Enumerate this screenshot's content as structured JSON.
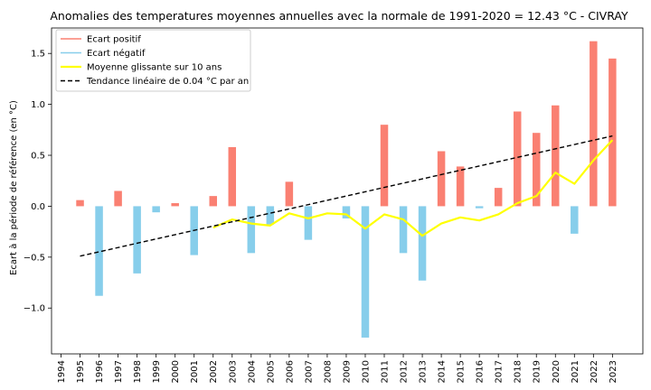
{
  "chart_data": {
    "type": "bar",
    "title": "Anomalies des temperatures moyennes annuelles avec la normale de 1991-2020 = 12.43 °C - CIVRAY",
    "xlabel": "",
    "ylabel": "Ecart à la période de référence (en °C)",
    "x_ticks": [
      "1994",
      "1995",
      "1996",
      "1997",
      "1998",
      "1999",
      "2000",
      "2001",
      "2002",
      "2003",
      "2004",
      "2005",
      "2006",
      "2007",
      "2008",
      "2009",
      "2010",
      "2011",
      "2012",
      "2013",
      "2014",
      "2015",
      "2016",
      "2017",
      "2018",
      "2019",
      "2020",
      "2021",
      "2022",
      "2023"
    ],
    "xlim": [
      1993.5,
      2024.6
    ],
    "ylim": [
      -1.45,
      1.75
    ],
    "y_ticks": [
      -1.0,
      -0.5,
      0.0,
      0.5,
      1.0,
      1.5
    ],
    "y_tick_labels": [
      "−1.0",
      "−0.5",
      "0.0",
      "0.5",
      "1.0",
      "1.5"
    ],
    "grid": false,
    "legend_position": "top-left",
    "colors": {
      "positive": "#fa8072",
      "negative": "#87ceeb",
      "moving_average": "#ffff00",
      "trend": "#000000"
    },
    "legend": [
      {
        "key": "positive",
        "label": "Ecart positif",
        "style": "line"
      },
      {
        "key": "negative",
        "label": "Ecart négatif",
        "style": "line"
      },
      {
        "key": "moving_average",
        "label": "Moyenne glissante sur 10 ans",
        "style": "line"
      },
      {
        "key": "trend",
        "label": "Tendance linéaire de 0.04 °C par an",
        "style": "dashed"
      }
    ],
    "series": [
      {
        "name": "Ecart positif",
        "points": [
          {
            "year": 1995,
            "value": 0.06
          },
          {
            "year": 1997,
            "value": 0.15
          },
          {
            "year": 2000,
            "value": 0.03
          },
          {
            "year": 2002,
            "value": 0.1
          },
          {
            "year": 2003,
            "value": 0.58
          },
          {
            "year": 2006,
            "value": 0.24
          },
          {
            "year": 2011,
            "value": 0.8
          },
          {
            "year": 2014,
            "value": 0.54
          },
          {
            "year": 2015,
            "value": 0.39
          },
          {
            "year": 2017,
            "value": 0.18
          },
          {
            "year": 2018,
            "value": 0.93
          },
          {
            "year": 2019,
            "value": 0.72
          },
          {
            "year": 2020,
            "value": 0.99
          },
          {
            "year": 2022,
            "value": 1.62
          },
          {
            "year": 2023,
            "value": 1.45
          }
        ]
      },
      {
        "name": "Ecart négatif",
        "points": [
          {
            "year": 1996,
            "value": -0.88
          },
          {
            "year": 1998,
            "value": -0.66
          },
          {
            "year": 1999,
            "value": -0.06
          },
          {
            "year": 2001,
            "value": -0.48
          },
          {
            "year": 2004,
            "value": -0.46
          },
          {
            "year": 2005,
            "value": -0.18
          },
          {
            "year": 2007,
            "value": -0.33
          },
          {
            "year": 2009,
            "value": -0.12
          },
          {
            "year": 2010,
            "value": -1.29
          },
          {
            "year": 2012,
            "value": -0.46
          },
          {
            "year": 2013,
            "value": -0.73
          },
          {
            "year": 2016,
            "value": -0.02
          },
          {
            "year": 2021,
            "value": -0.27
          }
        ]
      },
      {
        "name": "Moyenne glissante sur 10 ans",
        "x": [
          2002,
          2003,
          2004,
          2005,
          2006,
          2007,
          2008,
          2009,
          2010,
          2011,
          2012,
          2013,
          2014,
          2015,
          2016,
          2017,
          2018,
          2019,
          2020,
          2021,
          2022,
          2023
        ],
        "y": [
          -0.21,
          -0.13,
          -0.17,
          -0.19,
          -0.07,
          -0.12,
          -0.07,
          -0.08,
          -0.22,
          -0.08,
          -0.13,
          -0.29,
          -0.17,
          -0.11,
          -0.14,
          -0.08,
          0.03,
          0.1,
          0.33,
          0.22,
          0.45,
          0.65
        ]
      },
      {
        "name": "Tendance linéaire de 0.04 °C par an",
        "x": [
          1995,
          2023
        ],
        "y": [
          -0.49,
          0.69
        ]
      }
    ]
  }
}
